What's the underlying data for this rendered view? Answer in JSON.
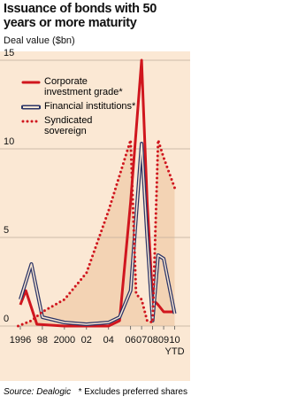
{
  "chart_data": {
    "type": "line",
    "title": "Issuance of bonds with 50 years or more maturity",
    "subtitle": "Deal value ($bn)",
    "xlim": [
      1995.6,
      2010.6
    ],
    "xticks": [
      1996,
      {
        "value": 1998,
        "label": "98"
      },
      2000,
      {
        "value": 2002,
        "label": "02"
      },
      {
        "value": 2004,
        "label": "04"
      },
      {
        "value": 2006,
        "label": "06"
      },
      {
        "value": 2007,
        "label": "07"
      },
      {
        "value": 2008,
        "label": "08"
      },
      {
        "value": 2009,
        "label": "09"
      },
      {
        "value": 2010,
        "label": "10"
      }
    ],
    "x_note": "YTD",
    "ylim": [
      0,
      15
    ],
    "yticks": [
      0,
      5,
      10,
      15
    ],
    "grid": true,
    "legend": "top-left",
    "series": [
      {
        "name": "Corporate investment grade*",
        "color": "#d0161e",
        "style": "solid",
        "x": [
          1996,
          1996.5,
          1997.5,
          2000,
          2004,
          2005,
          2006,
          2007,
          2007.5,
          2008,
          2008.5,
          2009,
          2010
        ],
        "values": [
          1.2,
          2.0,
          0.1,
          0,
          0,
          0.3,
          7,
          15,
          7,
          1.5,
          1.2,
          0.8,
          0.8
        ]
      },
      {
        "name": "Financial institutions*",
        "color": "#2b3466",
        "style": "double",
        "x": [
          1996,
          1997,
          1998,
          2000,
          2002,
          2004,
          2005,
          2006,
          2007,
          2007.5,
          2008,
          2008.5,
          2009,
          2010
        ],
        "values": [
          1.5,
          3.5,
          0.5,
          0.2,
          0.1,
          0.2,
          0.5,
          2,
          10.3,
          5,
          0.3,
          4,
          3.8,
          0.7
        ]
      },
      {
        "name": "Syndicated sovereign",
        "color": "#d0161e",
        "style": "dotted",
        "fill": "#efcba6",
        "x": [
          1995.8,
          1997,
          1998,
          2000,
          2002,
          2004,
          2006,
          2006.5,
          2007,
          2007.5,
          2008,
          2008.5,
          2009,
          2010
        ],
        "values": [
          0,
          0.3,
          0.8,
          1.5,
          3,
          6.5,
          10.5,
          1.8,
          1.5,
          0.3,
          0.2,
          10.5,
          9.5,
          7.8
        ]
      }
    ],
    "source": "Source: Dealogic",
    "footnote": "* Excludes preferred shares"
  }
}
